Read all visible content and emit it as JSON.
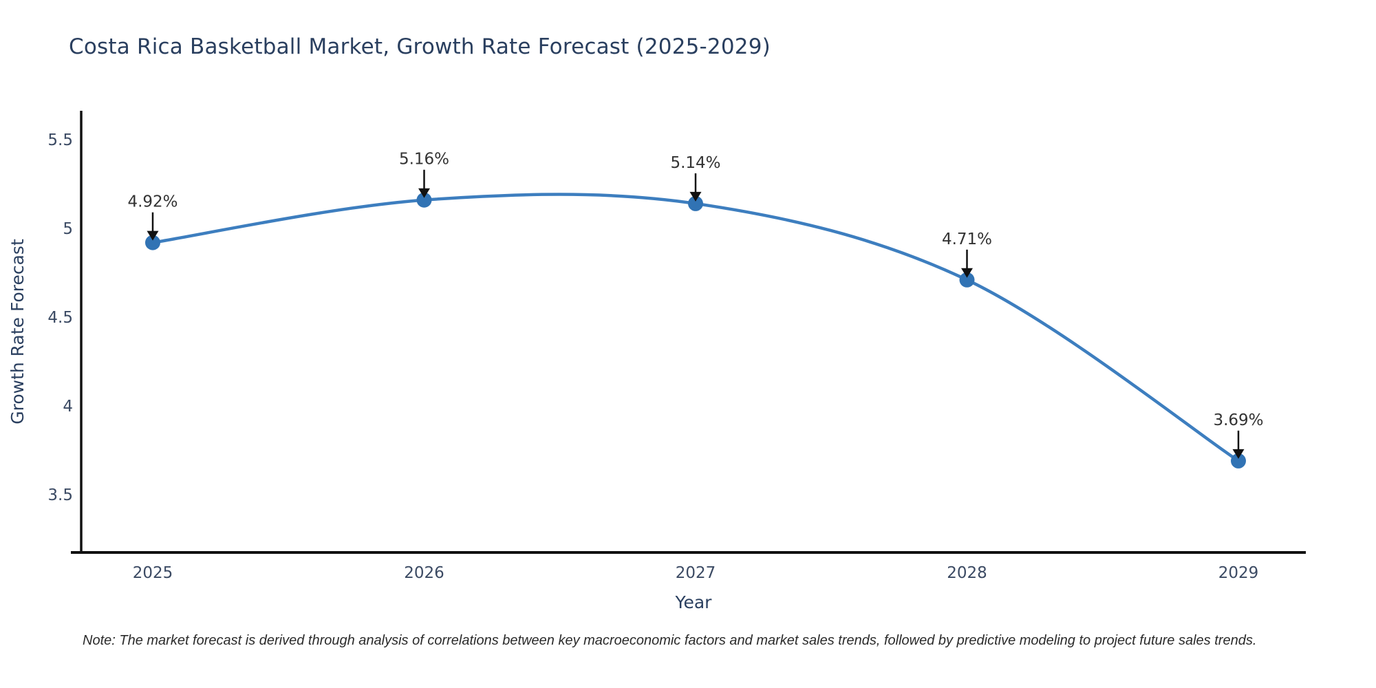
{
  "title": "Costa Rica Basketball Market, Growth Rate Forecast (2025-2029)",
  "note": "Note: The market forecast is derived through analysis of correlations between key macroeconomic factors and market sales trends, followed by predictive modeling to project future sales trends.",
  "colors": {
    "line": "#3d7ebf",
    "marker": "#3173b4",
    "axis": "#111111",
    "title_text": "#2a3f5f",
    "tick_text": "#3b4a63",
    "annotation_text": "#333333",
    "arrow": "#111111",
    "background": "#ffffff"
  },
  "chart_data": {
    "type": "line",
    "line_shape": "spline",
    "title": "Costa Rica Basketball Market, Growth Rate Forecast (2025-2029)",
    "categories": [
      "2025",
      "2026",
      "2027",
      "2028",
      "2029"
    ],
    "series": [
      {
        "name": "Growth Rate Forecast",
        "values": [
          4.92,
          5.16,
          5.14,
          4.71,
          3.69
        ]
      }
    ],
    "point_labels": [
      "4.92%",
      "5.16%",
      "5.14%",
      "4.71%",
      "3.69%"
    ],
    "xlabel": "Year",
    "ylabel": "Growth Rate Forecast",
    "ytick_values": [
      5.5,
      5,
      4.5,
      4,
      3.5
    ],
    "ytick_labels": [
      "5.5",
      "5",
      "4.5",
      "4",
      "3.5"
    ],
    "ylim": [
      3.174,
      5.663
    ],
    "grid": false,
    "legend": "none",
    "annotations_style": "value-label-with-down-arrow"
  }
}
